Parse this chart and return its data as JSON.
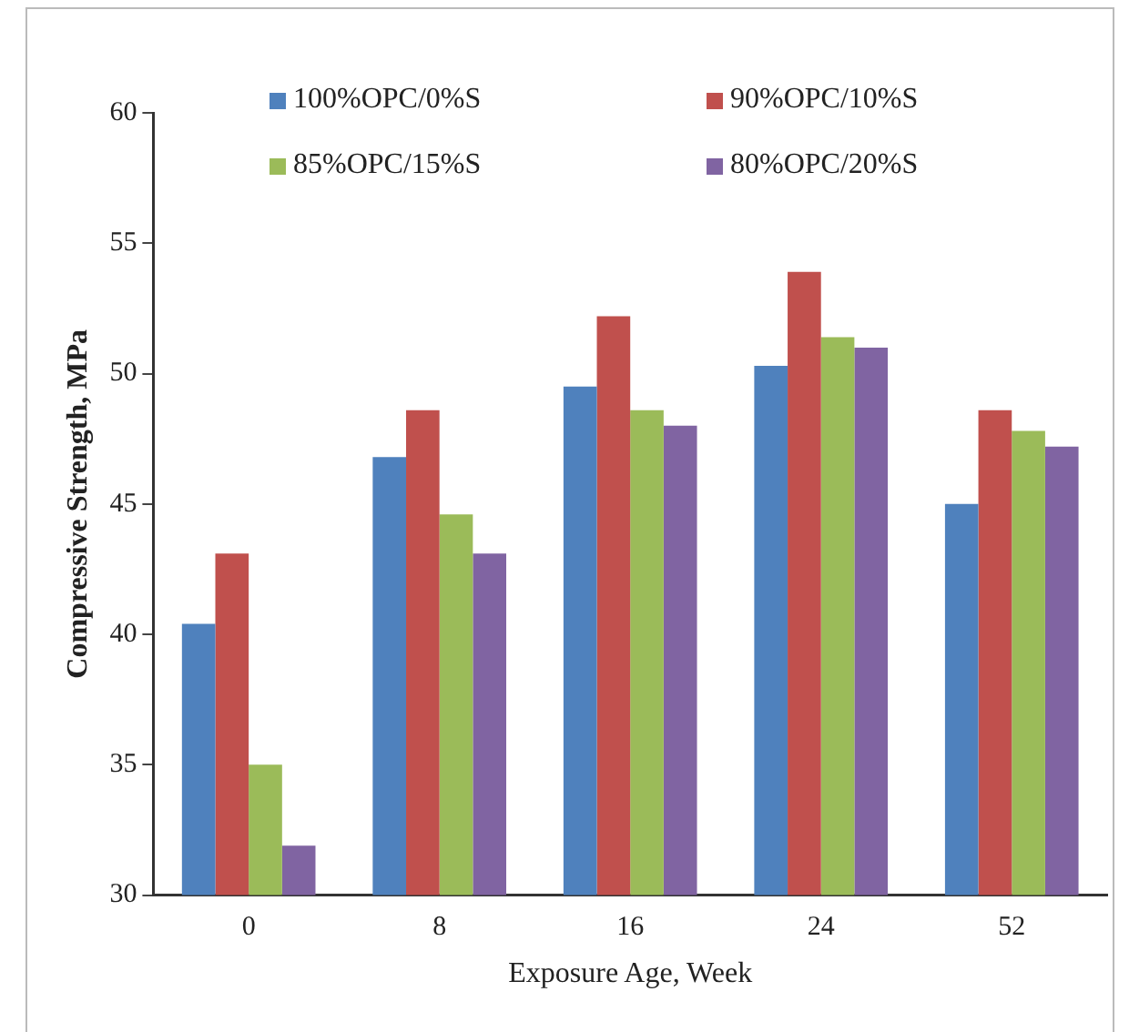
{
  "chart_data": {
    "type": "bar",
    "xlabel": "Exposure Age, Week",
    "ylabel": "Compressive Strength, MPa",
    "categories": [
      "0",
      "8",
      "16",
      "24",
      "52"
    ],
    "series": [
      {
        "name": "100%OPC/0%S",
        "color": "#4f81bd",
        "values": [
          40.4,
          46.8,
          49.5,
          50.3,
          45.0
        ]
      },
      {
        "name": "90%OPC/10%S",
        "color": "#c0504d",
        "values": [
          43.1,
          48.6,
          52.2,
          53.9,
          48.6
        ]
      },
      {
        "name": "85%OPC/15%S",
        "color": "#9bbb59",
        "values": [
          35.0,
          44.6,
          48.6,
          51.4,
          47.8
        ]
      },
      {
        "name": "80%OPC/20%S",
        "color": "#8064a2",
        "values": [
          31.9,
          43.1,
          48.0,
          51.0,
          47.2
        ]
      }
    ],
    "ylim": [
      30,
      60
    ],
    "yticks": [
      30,
      35,
      40,
      45,
      50,
      55,
      60
    ],
    "grid": false,
    "legend": "top"
  }
}
